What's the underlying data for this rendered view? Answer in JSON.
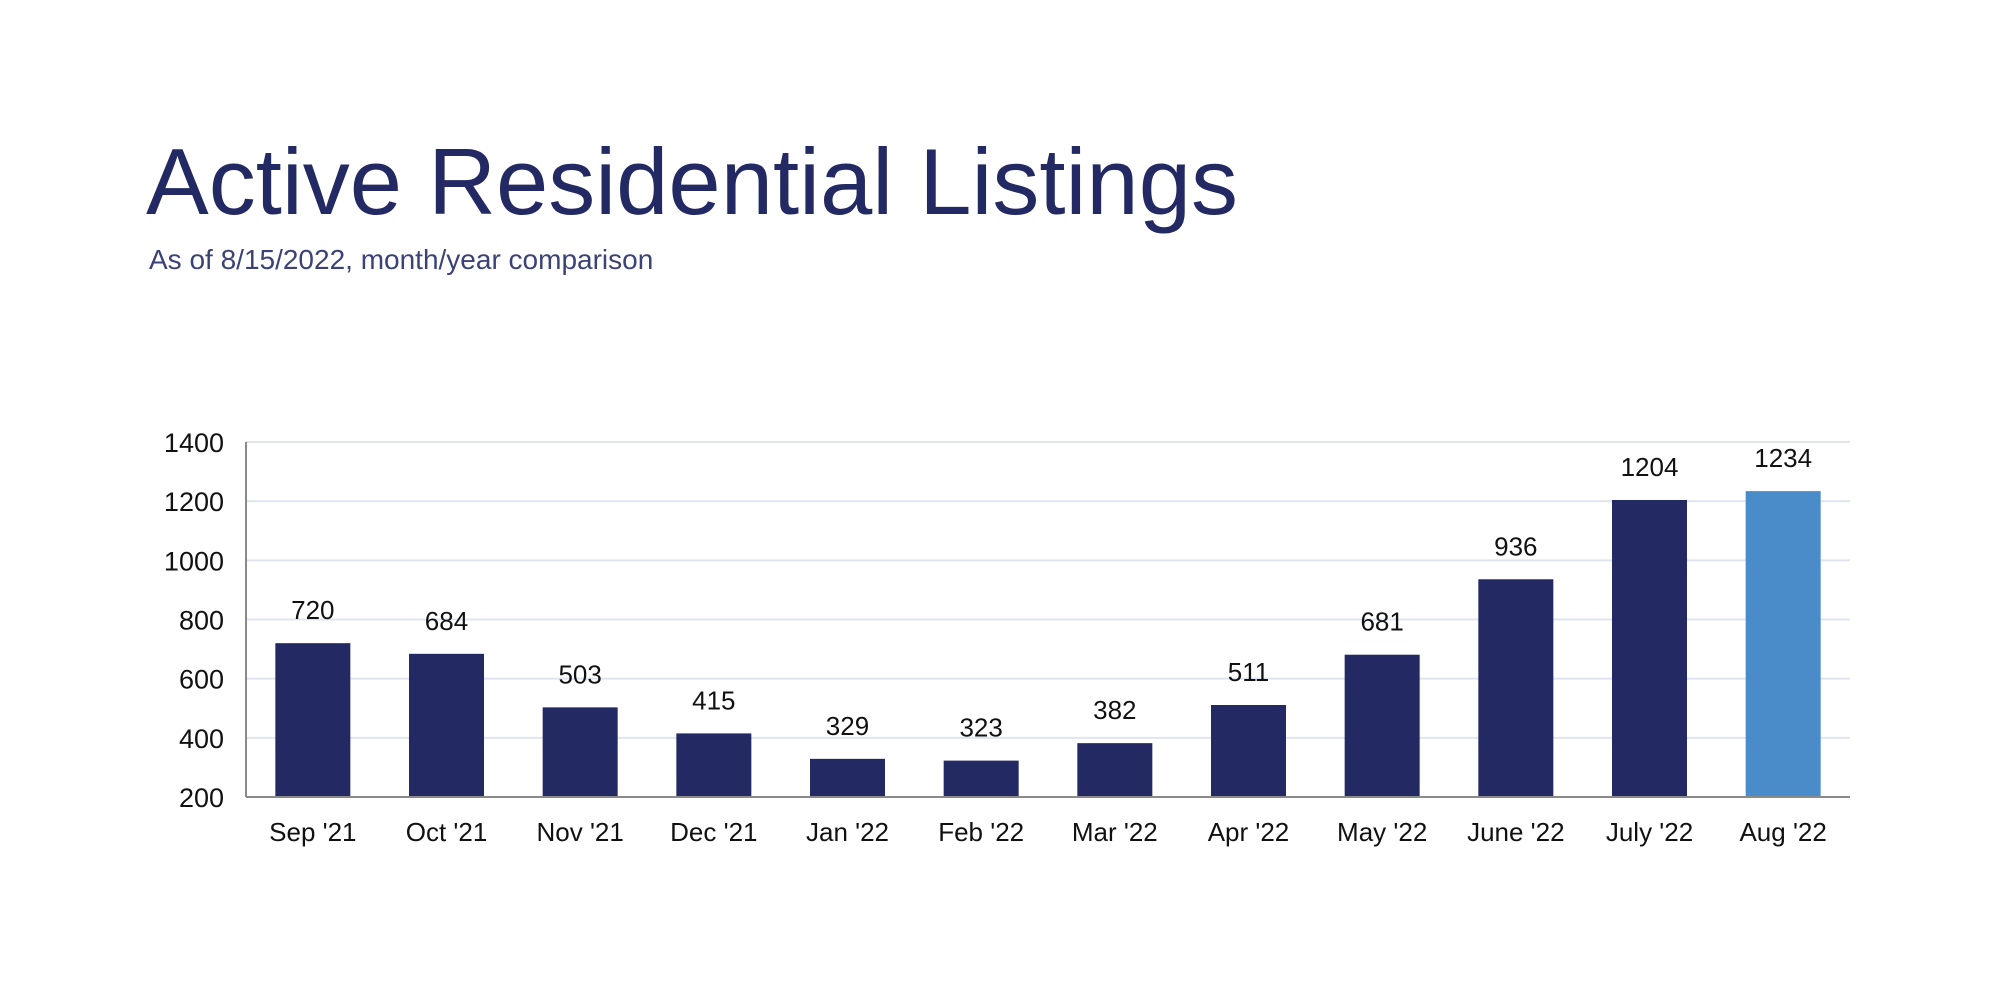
{
  "chart_data": {
    "type": "bar",
    "title": "Active Residential Listings",
    "subtitle": "As of 8/15/2022, month/year comparison",
    "categories": [
      "Sep '21",
      "Oct '21",
      "Nov '21",
      "Dec '21",
      "Jan '22",
      "Feb '22",
      "Mar '22",
      "Apr '22",
      "May '22",
      "June '22",
      "July '22",
      "Aug '22"
    ],
    "values": [
      720,
      684,
      503,
      415,
      329,
      323,
      382,
      511,
      681,
      936,
      1204,
      1234
    ],
    "ylim": [
      200,
      1400
    ],
    "yticks": [
      200,
      400,
      600,
      800,
      1000,
      1200,
      1400
    ],
    "grid": true,
    "data_labels": true,
    "colors": {
      "bar": "#232a63",
      "highlight": "#4a8cc9",
      "grid": "#dfe4f0",
      "axis": "#8a8a8a",
      "title": "#232a63"
    },
    "highlight_index": 11
  }
}
